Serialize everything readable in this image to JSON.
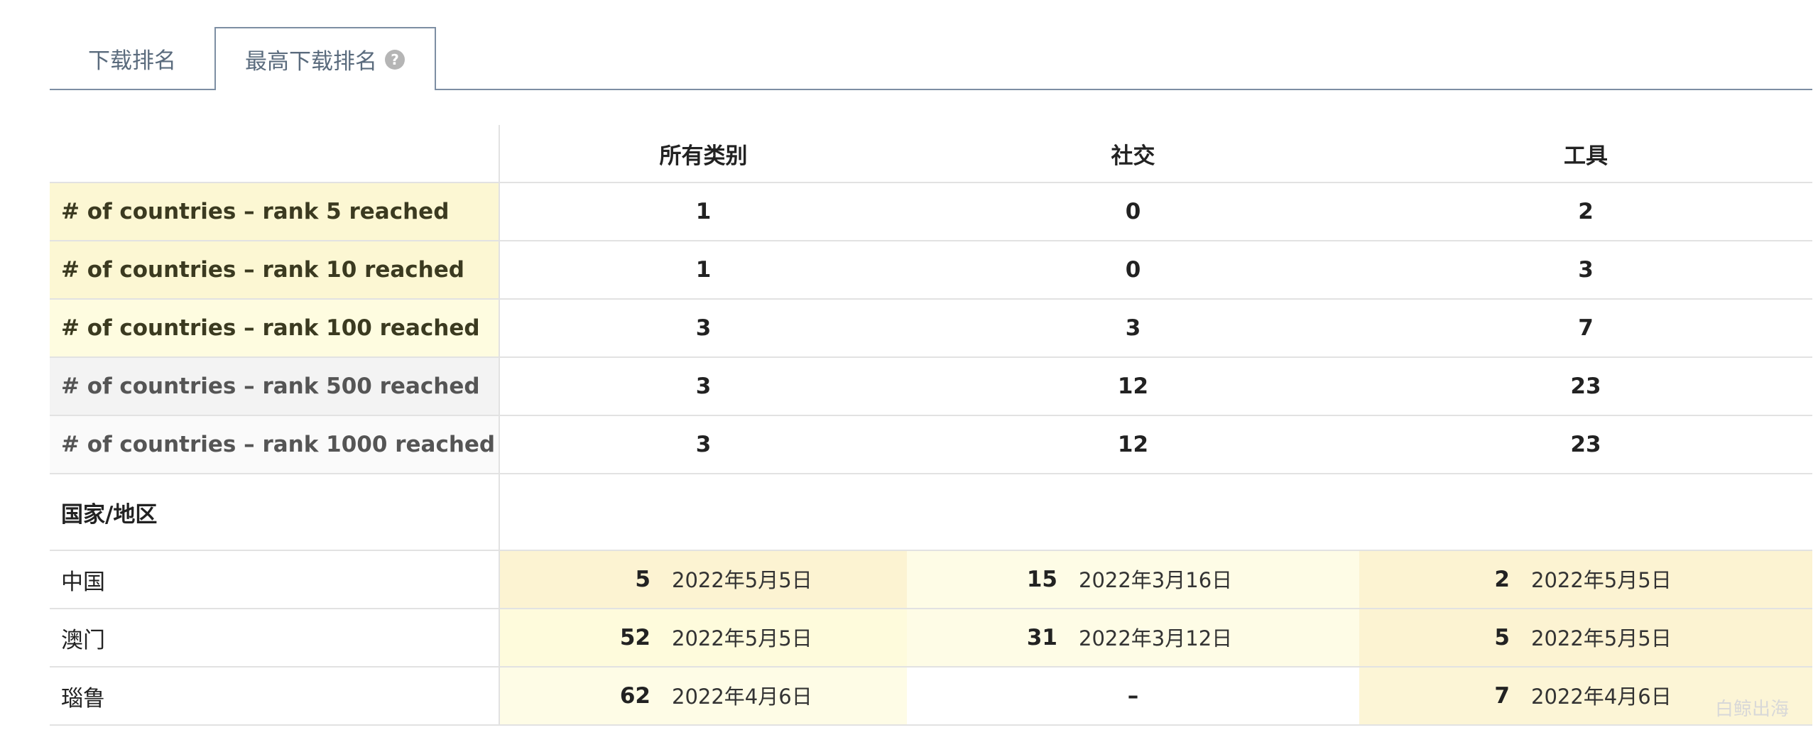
{
  "tabs": [
    "下载排名",
    "最高下载排名"
  ],
  "table": {
    "columns": [
      "所有类别",
      "社交",
      "工具"
    ],
    "summary": [
      {
        "label": "# of countries – rank 5 reached",
        "color": "#fcf7d3",
        "values": [
          "1",
          "0",
          "2"
        ]
      },
      {
        "label": "# of countries – rank 10 reached",
        "color": "#fcf7d3",
        "values": [
          "1",
          "0",
          "3"
        ]
      },
      {
        "label": "# of countries – rank 100 reached",
        "color": "#fefce0",
        "values": [
          "3",
          "3",
          "7"
        ]
      },
      {
        "label": "# of countries – rank 500 reached",
        "color": "#f3f3f3",
        "values": [
          "3",
          "12",
          "23"
        ]
      },
      {
        "label": "# of countries – rank 1000 reached",
        "color": "#fafafa",
        "values": [
          "3",
          "12",
          "23"
        ]
      }
    ],
    "section": "国家/地区",
    "rows": [
      {
        "name": "中国",
        "cells": [
          {
            "rank": "5",
            "date": "2022年5月5日",
            "color": "#fcf3d2"
          },
          {
            "rank": "15",
            "date": "2022年3月16日",
            "color": "#fefce6"
          },
          {
            "rank": "2",
            "date": "2022年5月5日",
            "color": "#fcf3d2"
          }
        ]
      },
      {
        "name": "澳门",
        "cells": [
          {
            "rank": "52",
            "date": "2022年5月5日",
            "color": "#fefbdc"
          },
          {
            "rank": "31",
            "date": "2022年3月12日",
            "color": "#fefce6"
          },
          {
            "rank": "5",
            "date": "2022年5月5日",
            "color": "#fcf3d2"
          }
        ]
      },
      {
        "name": "瑙鲁",
        "cells": [
          {
            "rank": "62",
            "date": "2022年4月6日",
            "color": "#fefce6"
          },
          {
            "text": "–",
            "color": "#ffffff"
          },
          {
            "rank": "7",
            "date": "2022年4月6日",
            "color": "#fcf5d6"
          }
        ]
      }
    ]
  },
  "watermark": "白鲸出海"
}
